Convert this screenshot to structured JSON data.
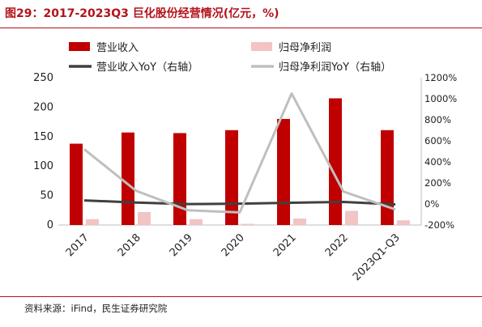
{
  "figure": {
    "title": "图29：2017-2023Q3 巨化股份经营情况(亿元，%)",
    "source": "资料来源：iFind，民生证券研究院"
  },
  "chart_data": {
    "type": "bar",
    "categories": [
      "2017",
      "2018",
      "2019",
      "2020",
      "2021",
      "2022",
      "2023Q1-Q3"
    ],
    "ylim": [
      0,
      250
    ],
    "yticks": [
      0,
      50,
      100,
      150,
      200,
      250
    ],
    "y2lim": [
      -200,
      1200
    ],
    "y2ticks": [
      -200,
      0,
      200,
      400,
      600,
      800,
      1000,
      1200
    ],
    "y2tick_labels": [
      "-200%",
      "0%",
      "200%",
      "400%",
      "600%",
      "800%",
      "1000%",
      "1200%"
    ],
    "legend_position": "top",
    "grid": false,
    "series": [
      {
        "name": "营业收入",
        "kind": "bar",
        "axis": "left",
        "color": "#c00000",
        "values": [
          138,
          157,
          156,
          161,
          180,
          215,
          161
        ]
      },
      {
        "name": "归母净利润",
        "kind": "bar",
        "axis": "left",
        "color": "#f2c4c4",
        "values": [
          10,
          22,
          10,
          2,
          11,
          24,
          8
        ]
      },
      {
        "name": "营业收入YoY（右轴）",
        "kind": "line",
        "axis": "right",
        "color": "#404040",
        "values": [
          34,
          13,
          -1,
          3,
          12,
          19,
          -4
        ]
      },
      {
        "name": "归母净利润YoY（右轴）",
        "kind": "line",
        "axis": "right",
        "color": "#bfbfbf",
        "values": [
          520,
          125,
          -60,
          -80,
          1050,
          118,
          -52
        ]
      }
    ]
  }
}
